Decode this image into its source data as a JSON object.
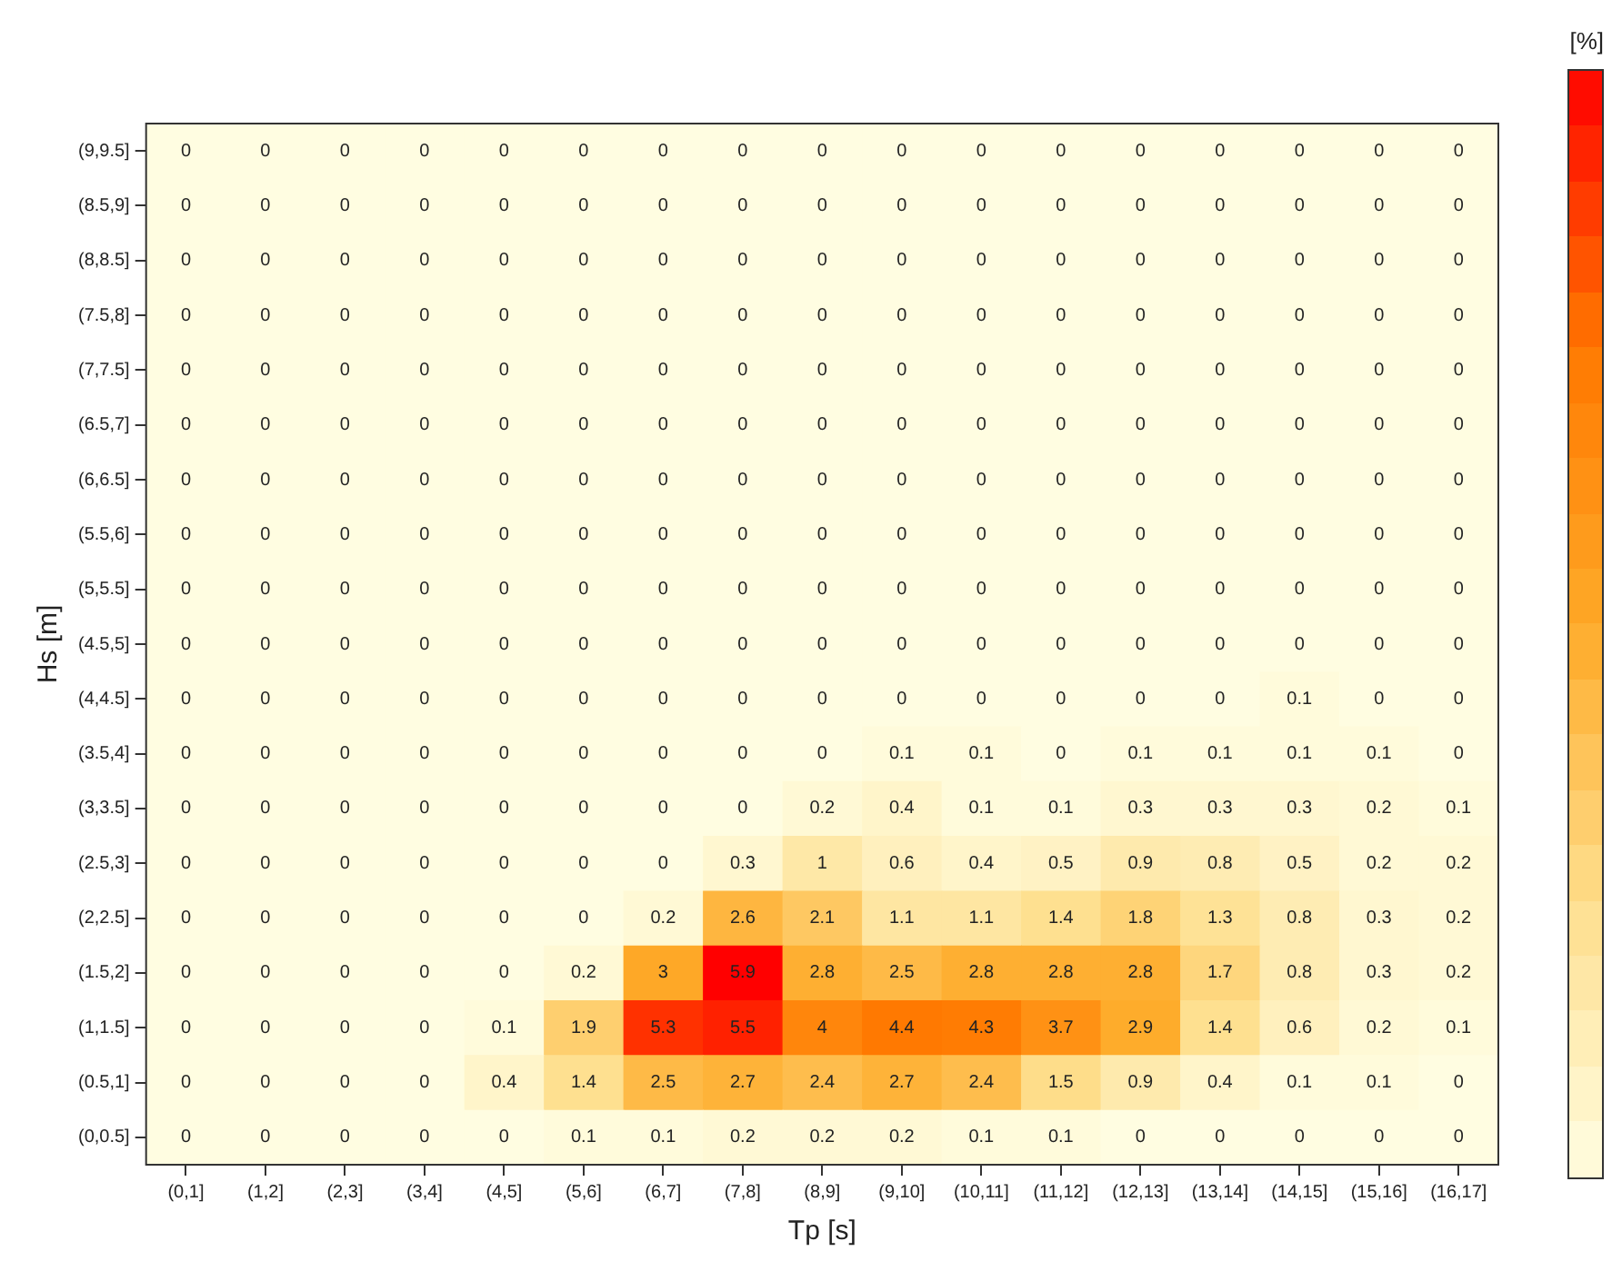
{
  "chart_data": {
    "type": "heatmap",
    "xlabel": "Tp [s]",
    "ylabel": "Hs [m]",
    "clabel": "[%]",
    "data_labels": true,
    "categories": [
      "(0,1]",
      "(1,2]",
      "(2,3]",
      "(3,4]",
      "(4,5]",
      "(5,6]",
      "(6,7]",
      "(7,8]",
      "(8,9]",
      "(9,10]",
      "(10,11]",
      "(11,12]",
      "(12,13]",
      "(13,14]",
      "(14,15]",
      "(15,16]",
      "(16,17]"
    ],
    "y_categories": [
      "(9,9.5]",
      "(8.5,9]",
      "(8,8.5]",
      "(7.5,8]",
      "(7,7.5]",
      "(6.5,7]",
      "(6,6.5]",
      "(5.5,6]",
      "(5,5.5]",
      "(4.5,5]",
      "(4,4.5]",
      "(3.5,4]",
      "(3,3.5]",
      "(2.5,3]",
      "(2,2.5]",
      "(1.5,2]",
      "(1,1.5]",
      "(0.5,1]",
      "(0,0.5]"
    ],
    "cells": [
      [
        0,
        0,
        0,
        0,
        0,
        0,
        0,
        0,
        0,
        0,
        0,
        0,
        0,
        0,
        0,
        0,
        0
      ],
      [
        0,
        0,
        0,
        0,
        0,
        0,
        0,
        0,
        0,
        0,
        0,
        0,
        0,
        0,
        0,
        0,
        0
      ],
      [
        0,
        0,
        0,
        0,
        0,
        0,
        0,
        0,
        0,
        0,
        0,
        0,
        0,
        0,
        0,
        0,
        0
      ],
      [
        0,
        0,
        0,
        0,
        0,
        0,
        0,
        0,
        0,
        0,
        0,
        0,
        0,
        0,
        0,
        0,
        0
      ],
      [
        0,
        0,
        0,
        0,
        0,
        0,
        0,
        0,
        0,
        0,
        0,
        0,
        0,
        0,
        0,
        0,
        0
      ],
      [
        0,
        0,
        0,
        0,
        0,
        0,
        0,
        0,
        0,
        0,
        0,
        0,
        0,
        0,
        0,
        0,
        0
      ],
      [
        0,
        0,
        0,
        0,
        0,
        0,
        0,
        0,
        0,
        0,
        0,
        0,
        0,
        0,
        0,
        0,
        0
      ],
      [
        0,
        0,
        0,
        0,
        0,
        0,
        0,
        0,
        0,
        0,
        0,
        0,
        0,
        0,
        0,
        0,
        0
      ],
      [
        0,
        0,
        0,
        0,
        0,
        0,
        0,
        0,
        0,
        0,
        0,
        0,
        0,
        0,
        0,
        0,
        0
      ],
      [
        0,
        0,
        0,
        0,
        0,
        0,
        0,
        0,
        0,
        0,
        0,
        0,
        0,
        0,
        0,
        0,
        0
      ],
      [
        0,
        0,
        0,
        0,
        0,
        0,
        0,
        0,
        0,
        0,
        0,
        0,
        0,
        0,
        0.1,
        0,
        0
      ],
      [
        0,
        0,
        0,
        0,
        0,
        0,
        0,
        0,
        0,
        0.1,
        0.1,
        0,
        0.1,
        0.1,
        0.1,
        0.1,
        0
      ],
      [
        0,
        0,
        0,
        0,
        0,
        0,
        0,
        0,
        0.2,
        0.4,
        0.1,
        0.1,
        0.3,
        0.3,
        0.3,
        0.2,
        0.1
      ],
      [
        0,
        0,
        0,
        0,
        0,
        0,
        0,
        0.3,
        1,
        0.6,
        0.4,
        0.5,
        0.9,
        0.8,
        0.5,
        0.2,
        0.2
      ],
      [
        0,
        0,
        0,
        0,
        0,
        0,
        0.2,
        2.6,
        2.1,
        1.1,
        1.1,
        1.4,
        1.8,
        1.3,
        0.8,
        0.3,
        0.2
      ],
      [
        0,
        0,
        0,
        0,
        0,
        0.2,
        3,
        5.9,
        2.8,
        2.5,
        2.8,
        2.8,
        2.8,
        1.7,
        0.8,
        0.3,
        0.2
      ],
      [
        0,
        0,
        0,
        0,
        0.1,
        1.9,
        5.3,
        5.5,
        4,
        4.4,
        4.3,
        3.7,
        2.9,
        1.4,
        0.6,
        0.2,
        0.1
      ],
      [
        0,
        0,
        0,
        0,
        0.4,
        1.4,
        2.5,
        2.7,
        2.4,
        2.7,
        2.4,
        1.5,
        0.9,
        0.4,
        0.1,
        0.1,
        0
      ],
      [
        0,
        0,
        0,
        0,
        0,
        0.1,
        0.1,
        0.2,
        0.2,
        0.2,
        0.1,
        0.1,
        0,
        0,
        0,
        0,
        0
      ]
    ]
  }
}
